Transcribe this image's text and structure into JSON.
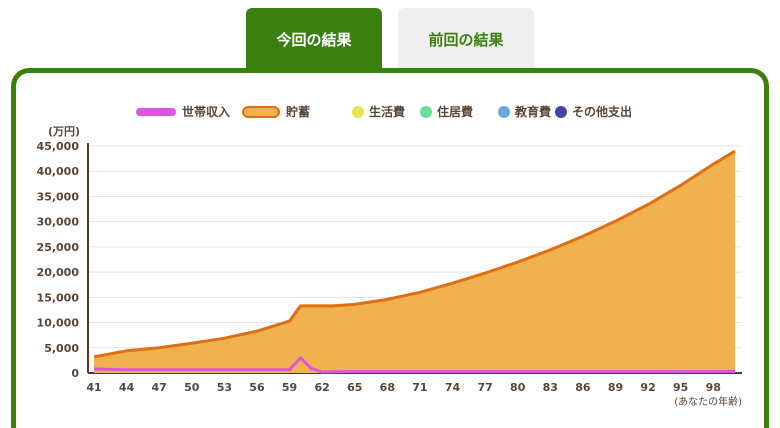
{
  "tabs": {
    "current": "今回の結果",
    "previous": "前回の結果"
  },
  "colors": {
    "brand": "#3a8010",
    "income": "#dd55dd",
    "savings_fill": "#f0b24e",
    "savings_line": "#e06e12",
    "living": "#e8e44c",
    "housing": "#66dd99",
    "education": "#66aadd",
    "other": "#4444aa"
  },
  "chart_data": {
    "type": "area",
    "ylabel": "(万円)",
    "xlabel": "(あなたの年齢)",
    "ylim": [
      0,
      45000
    ],
    "yticks": [
      "0",
      "5,000",
      "10,000",
      "15,000",
      "20,000",
      "25,000",
      "30,000",
      "35,000",
      "40,000",
      "45,000"
    ],
    "xticks": [
      "41",
      "44",
      "47",
      "50",
      "53",
      "56",
      "59",
      "62",
      "65",
      "68",
      "71",
      "74",
      "77",
      "80",
      "83",
      "86",
      "89",
      "92",
      "95",
      "98"
    ],
    "legend": [
      {
        "name": "世帯収入",
        "type": "line",
        "color": "#dd55dd"
      },
      {
        "name": "貯蓄",
        "type": "area",
        "color": "#f0b24e"
      },
      {
        "name": "生活費",
        "type": "dot",
        "color": "#e8e44c"
      },
      {
        "name": "住居費",
        "type": "dot",
        "color": "#66dd99"
      },
      {
        "name": "教育費",
        "type": "dot",
        "color": "#66aadd"
      },
      {
        "name": "その他支出",
        "type": "dot",
        "color": "#4444aa"
      }
    ],
    "series": [
      {
        "name": "世帯収入",
        "x": [
          41,
          44,
          47,
          50,
          53,
          56,
          59,
          60,
          61,
          62,
          63,
          65,
          68,
          71,
          74,
          77,
          80,
          83,
          86,
          89,
          92,
          95,
          98,
          100
        ],
        "values": [
          800,
          650,
          650,
          650,
          650,
          650,
          650,
          3000,
          900,
          200,
          250,
          300,
          300,
          300,
          300,
          300,
          300,
          300,
          300,
          300,
          300,
          300,
          300,
          300
        ]
      },
      {
        "name": "貯蓄",
        "x": [
          41,
          44,
          47,
          50,
          53,
          56,
          59,
          60,
          61,
          62,
          63,
          65,
          68,
          71,
          74,
          77,
          80,
          83,
          86,
          89,
          92,
          95,
          98,
          100
        ],
        "values": [
          3200,
          4400,
          5000,
          5900,
          6900,
          8300,
          10300,
          13300,
          13300,
          13300,
          13300,
          13600,
          14600,
          16000,
          17800,
          19800,
          22000,
          24400,
          27100,
          30100,
          33400,
          37200,
          41400,
          44000
        ]
      }
    ]
  }
}
